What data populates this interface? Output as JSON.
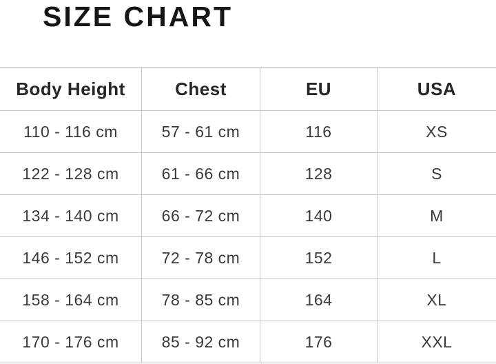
{
  "title": "SIZE CHART",
  "colors": {
    "title_text": "#161616",
    "cell_text": "#3a3a3a",
    "grid_line": "#c2c2c2",
    "background": "#ffffff"
  },
  "chart_data": {
    "type": "table",
    "title": "SIZE CHART",
    "columns": [
      "Body Height",
      "Chest",
      "EU",
      "USA"
    ],
    "rows": [
      [
        "110 - 116 cm",
        "57 - 61 cm",
        "116",
        "XS"
      ],
      [
        "122 - 128 cm",
        "61 - 66 cm",
        "128",
        "S"
      ],
      [
        "134 - 140 cm",
        "66 - 72 cm",
        "140",
        "M"
      ],
      [
        "146 - 152 cm",
        "72 - 78 cm",
        "152",
        "L"
      ],
      [
        "158 - 164 cm",
        "78 - 85 cm",
        "164",
        "XL"
      ],
      [
        "170 - 176 cm",
        "85 - 92 cm",
        "176",
        "XXL"
      ]
    ],
    "layout": {
      "grid": true,
      "header_row": true,
      "column_alignment": "center"
    }
  }
}
